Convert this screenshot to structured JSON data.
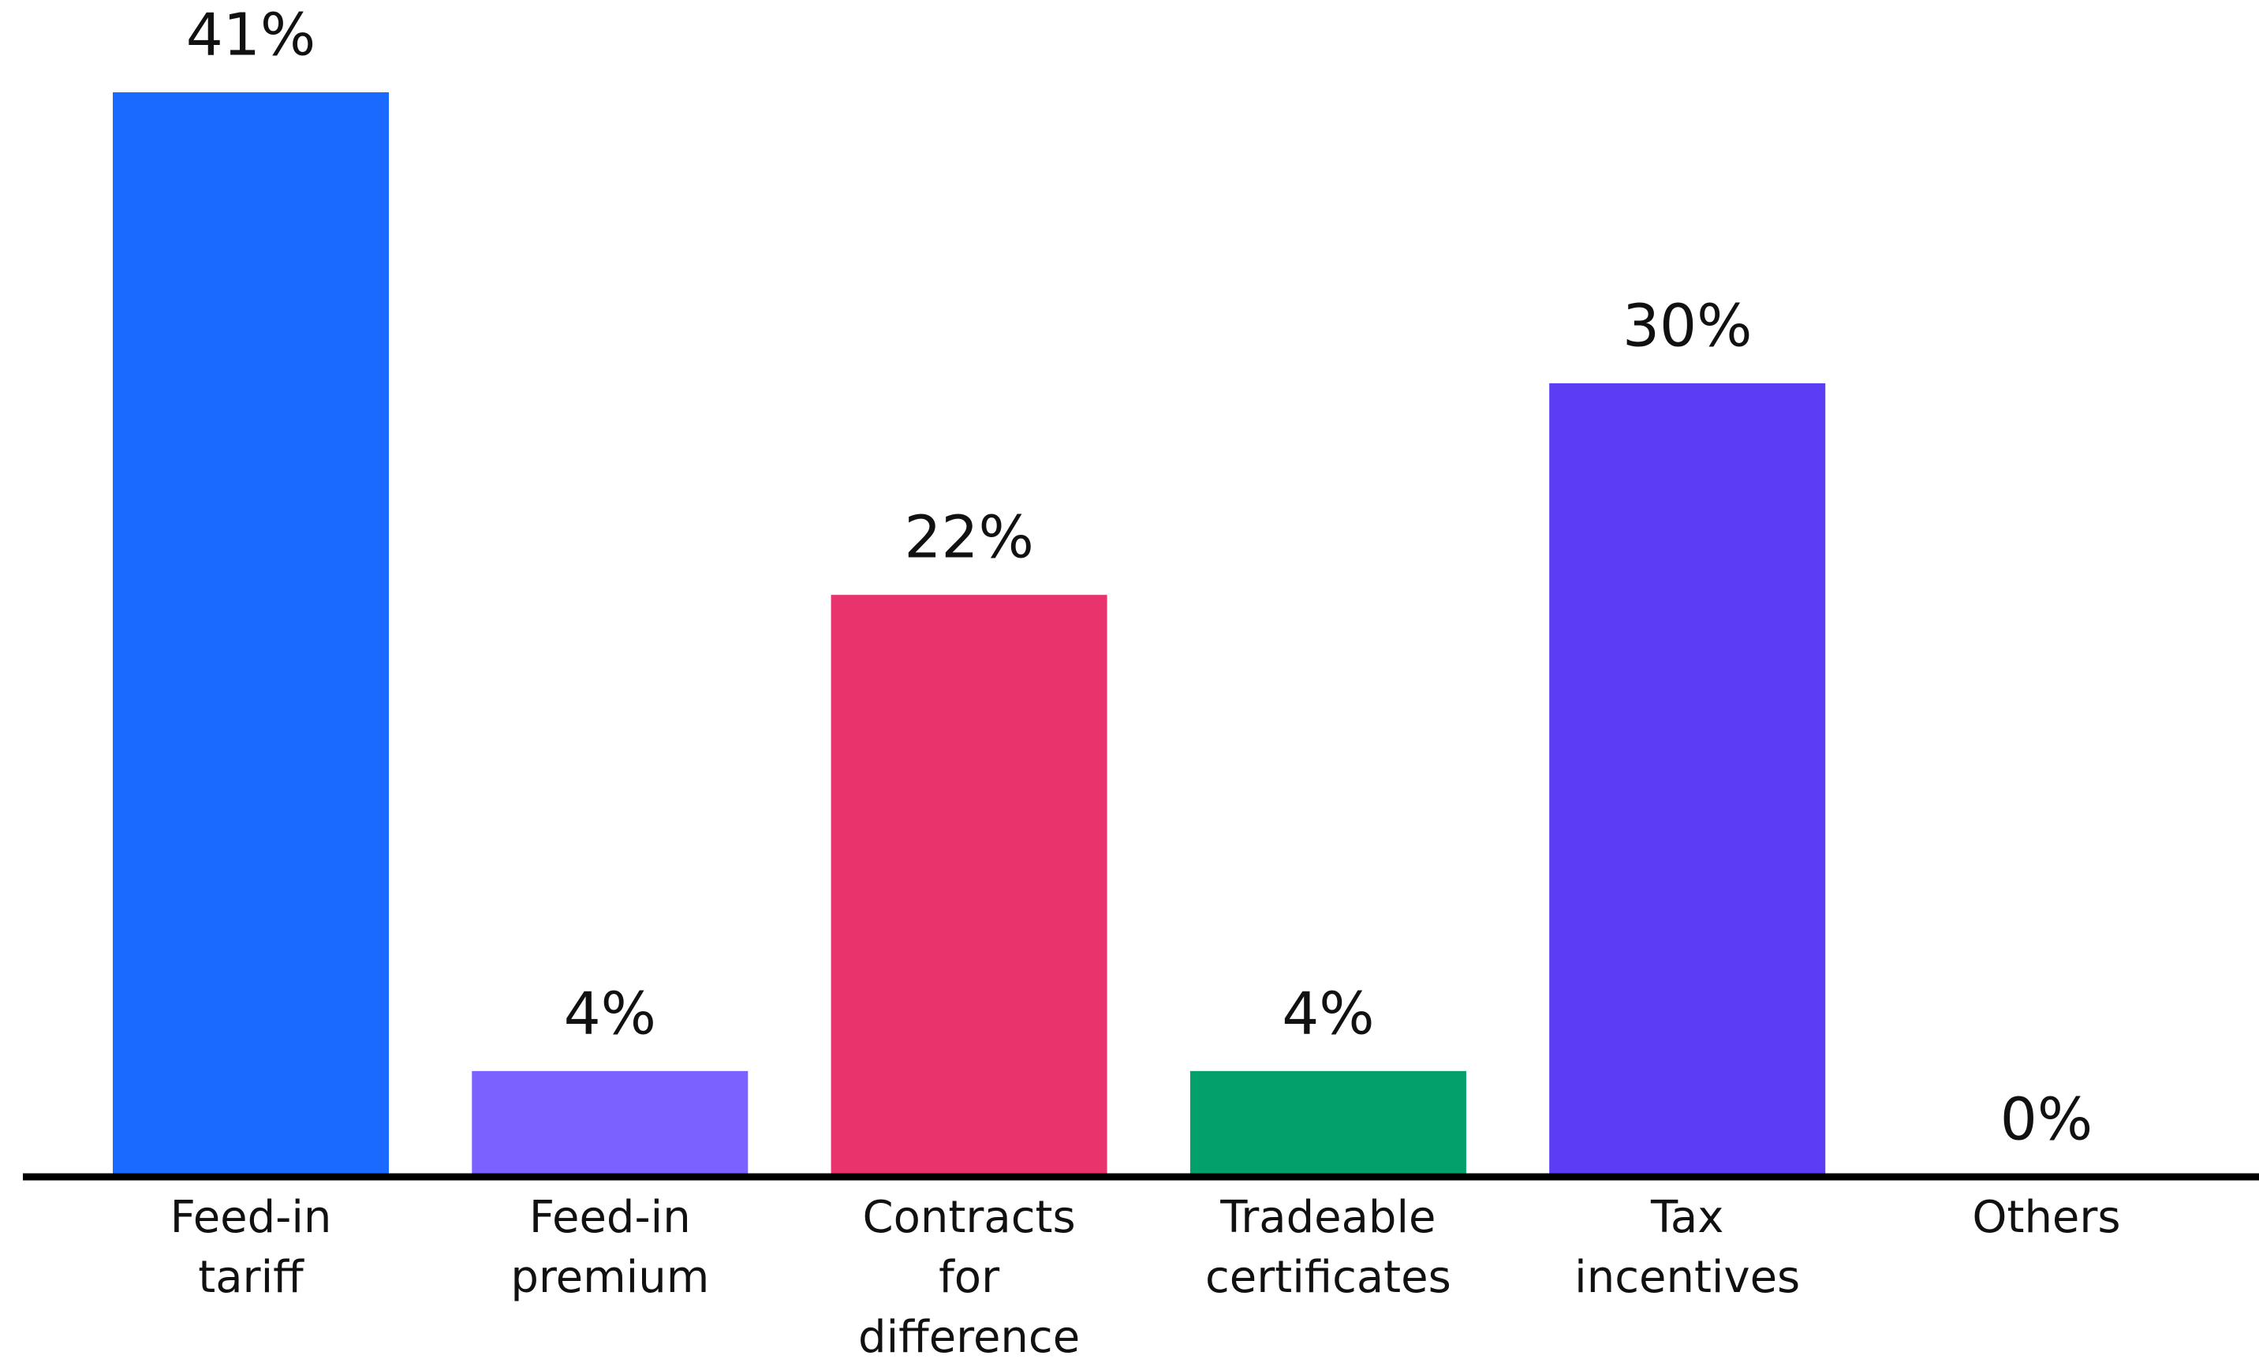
{
  "chart_data": {
    "type": "bar",
    "categories": [
      "Feed-in tariff",
      "Feed-in premium",
      "Contracts for difference",
      "Tradeable certificates",
      "Tax incentives",
      "Others"
    ],
    "values": [
      41,
      4,
      22,
      4,
      30,
      0
    ],
    "value_labels": [
      "41%",
      "4%",
      "22%",
      "4%",
      "30%",
      "0%"
    ],
    "colors": [
      "#1a6aff",
      "#7b61ff",
      "#e8336d",
      "#04a06b",
      "#5c3df5",
      null
    ]
  }
}
